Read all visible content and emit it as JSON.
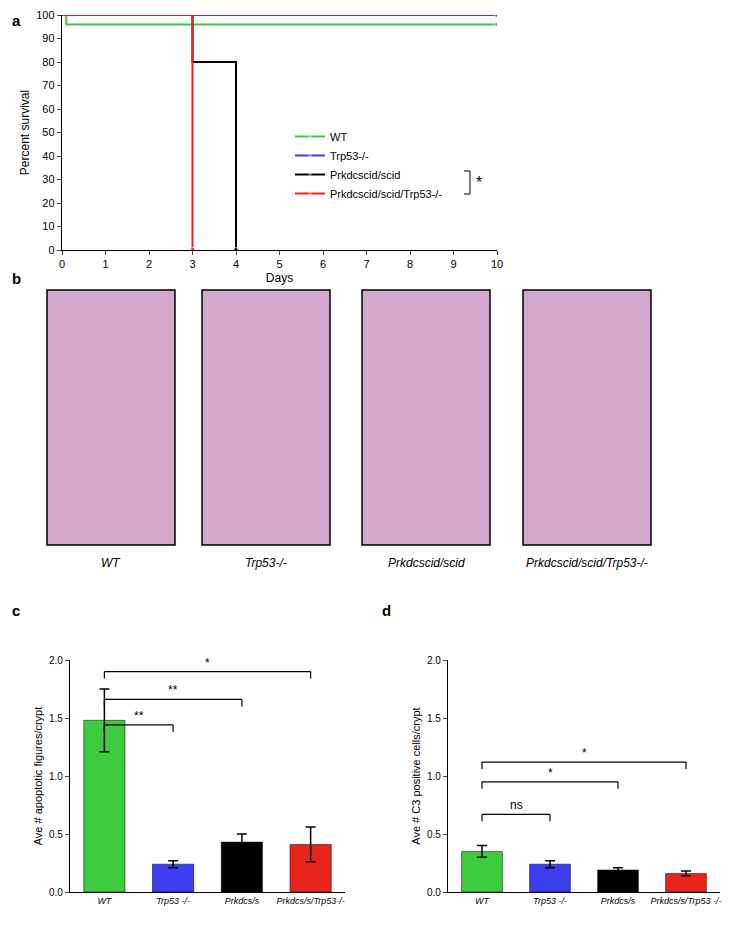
{
  "chart_data": [
    {
      "type": "line",
      "x_label": "Days",
      "y_label": "Percent survival",
      "xlim": [
        0,
        10
      ],
      "xticks": [
        0,
        1,
        2,
        3,
        4,
        5,
        6,
        7,
        8,
        9,
        10
      ],
      "ylim": [
        0,
        100
      ],
      "yticks": [
        0,
        10,
        20,
        30,
        40,
        50,
        60,
        70,
        80,
        90,
        100
      ],
      "grid": false,
      "legend": "center",
      "line_style": "step",
      "marker": "circle",
      "series": [
        {
          "name": "WT",
          "color": "#3dcc3d",
          "x": [
            0,
            0.1,
            10
          ],
          "values": [
            100,
            96,
            96
          ]
        },
        {
          "name": "Trp53-/-",
          "color": "#3c3cf0",
          "x": [
            0,
            10
          ],
          "values": [
            100,
            100
          ]
        },
        {
          "name": "Prkdcscid/scid",
          "color": "#000000",
          "x": [
            0,
            3,
            4
          ],
          "values": [
            100,
            80,
            0
          ]
        },
        {
          "name": "Prkdcscid/scid/Trp53-/-",
          "color": "#e8251c",
          "x": [
            0,
            3
          ],
          "values": [
            100,
            0
          ]
        }
      ],
      "annotations": [
        {
          "text": "*"
        }
      ]
    },
    {
      "type": "bar",
      "y_label": "Ave # apoptotic figures/crypt",
      "categories": [
        "WT",
        "Trp53 -/-",
        "Prkdcs/s",
        "Prkdcs/s/Trp53-/-"
      ],
      "values": [
        1.48,
        0.24,
        0.43,
        0.41
      ],
      "errors": [
        0.27,
        0.03,
        0.07,
        0.15
      ],
      "colors": [
        "#3dcc3d",
        "#3c3cf0",
        "#000000",
        "#e8251c"
      ],
      "ylim": [
        0,
        2
      ],
      "yticks": [
        {
          "value": 0,
          "label": "0.0"
        },
        {
          "value": 0.5,
          "label": "0.5"
        },
        {
          "value": 1,
          "label": "1.0"
        },
        {
          "value": 1.5,
          "label": "1.5"
        },
        {
          "value": 2,
          "label": "2.0"
        }
      ],
      "grid": false,
      "significance": [
        {
          "from": 0,
          "to": 1,
          "y": 1.44,
          "label": "**"
        },
        {
          "from": 0,
          "to": 2,
          "y": 1.66,
          "label": "**"
        },
        {
          "from": 0,
          "to": 3,
          "y": 1.9,
          "label": "*"
        }
      ]
    },
    {
      "type": "bar",
      "y_label": "Ave # C3 positive cells/crypt",
      "categories": [
        "WT",
        "Trp53 -/-",
        "Prkdcs/s",
        "Prkdcs/s/Trp53 -/-"
      ],
      "values": [
        0.35,
        0.24,
        0.19,
        0.16
      ],
      "errors": [
        0.05,
        0.03,
        0.02,
        0.02
      ],
      "colors": [
        "#3dcc3d",
        "#3c3cf0",
        "#000000",
        "#e8251c"
      ],
      "ylim": [
        0,
        2
      ],
      "yticks": [
        {
          "value": 0,
          "label": "0.0"
        },
        {
          "value": 0.5,
          "label": "0.5"
        },
        {
          "value": 1,
          "label": "1.0"
        },
        {
          "value": 1.5,
          "label": "1.5"
        },
        {
          "value": 2,
          "label": "2.0"
        }
      ],
      "grid": false,
      "significance": [
        {
          "from": 0,
          "to": 1,
          "y": 0.67,
          "label": "ns"
        },
        {
          "from": 0,
          "to": 2,
          "y": 0.95,
          "label": "*"
        },
        {
          "from": 0,
          "to": 3,
          "y": 1.12,
          "label": "*"
        }
      ]
    }
  ],
  "panel_labels": [
    "a",
    "b",
    "c",
    "d"
  ],
  "images_panel": {
    "captions": [
      "WT",
      "Trp53-/-",
      "Prkdcscid/scid",
      "Prkdcscid/scid/Trp53-/-"
    ]
  }
}
